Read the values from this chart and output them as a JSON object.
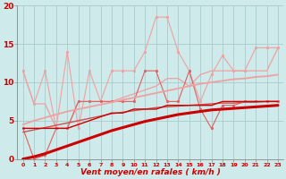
{
  "xlabel": "Vent moyen/en rafales ( km/h )",
  "background_color": "#ceeaea",
  "grid_color": "#aacccc",
  "x_values": [
    0,
    1,
    2,
    3,
    4,
    5,
    6,
    7,
    8,
    9,
    10,
    11,
    12,
    13,
    14,
    15,
    16,
    17,
    18,
    19,
    20,
    21,
    22,
    23
  ],
  "ylim": [
    0,
    20
  ],
  "xlim": [
    -0.5,
    23.5
  ],
  "yticks": [
    0,
    5,
    10,
    15,
    20
  ],
  "series": [
    {
      "name": "light_smooth1",
      "color": "#f0a0a0",
      "linewidth": 0.9,
      "marker": null,
      "y": [
        11.5,
        7.2,
        7.2,
        4.0,
        4.0,
        7.5,
        7.5,
        7.5,
        7.5,
        8.0,
        8.5,
        9.0,
        9.5,
        10.5,
        10.5,
        9.5,
        11.0,
        11.5,
        11.5,
        11.5,
        11.5,
        11.5,
        11.5,
        14.5
      ]
    },
    {
      "name": "light_zigzag_marker",
      "color": "#f0a0a0",
      "linewidth": 0.8,
      "marker": "s",
      "markersize": 2.0,
      "y": [
        11.5,
        7.2,
        11.5,
        4.0,
        14.0,
        4.0,
        11.5,
        7.5,
        11.5,
        11.5,
        11.5,
        14.0,
        18.5,
        18.5,
        14.0,
        11.5,
        7.5,
        11.0,
        13.5,
        11.5,
        11.5,
        14.5,
        14.5,
        14.5
      ]
    },
    {
      "name": "medium_red_zigzag_marker",
      "color": "#e06060",
      "linewidth": 0.8,
      "marker": "s",
      "markersize": 2.0,
      "y": [
        4.0,
        0.0,
        0.5,
        4.0,
        4.0,
        7.5,
        7.5,
        7.5,
        7.5,
        7.5,
        7.5,
        11.5,
        11.5,
        7.5,
        7.5,
        11.5,
        6.5,
        4.0,
        7.0,
        7.0,
        7.5,
        7.5,
        7.5,
        7.5
      ]
    },
    {
      "name": "light_trend_smooth",
      "color": "#f0a0a0",
      "linewidth": 1.3,
      "marker": null,
      "y": [
        4.5,
        5.0,
        5.4,
        5.8,
        6.2,
        6.5,
        6.8,
        7.1,
        7.4,
        7.7,
        8.0,
        8.3,
        8.6,
        8.9,
        9.2,
        9.5,
        9.8,
        10.0,
        10.2,
        10.4,
        10.5,
        10.7,
        10.8,
        11.0
      ]
    },
    {
      "name": "medium_trend_smooth",
      "color": "#d05050",
      "linewidth": 1.0,
      "marker": null,
      "y": [
        3.5,
        3.8,
        4.1,
        4.4,
        4.7,
        5.0,
        5.3,
        5.6,
        5.9,
        6.1,
        6.3,
        6.5,
        6.7,
        6.8,
        6.9,
        7.0,
        7.1,
        7.2,
        7.3,
        7.3,
        7.4,
        7.4,
        7.5,
        7.5
      ]
    },
    {
      "name": "dark_red_trend_thick",
      "color": "#cc0000",
      "linewidth": 2.2,
      "marker": null,
      "y": [
        0.0,
        0.3,
        0.7,
        1.2,
        1.7,
        2.2,
        2.7,
        3.2,
        3.7,
        4.1,
        4.5,
        4.9,
        5.2,
        5.5,
        5.8,
        6.0,
        6.2,
        6.4,
        6.5,
        6.6,
        6.7,
        6.8,
        6.9,
        7.0
      ]
    },
    {
      "name": "dark_red_stepped",
      "color": "#cc0000",
      "linewidth": 1.0,
      "marker": null,
      "y": [
        4.0,
        4.0,
        4.0,
        4.0,
        4.0,
        4.5,
        5.0,
        5.5,
        6.0,
        6.0,
        6.5,
        6.5,
        6.5,
        7.0,
        7.0,
        7.0,
        7.0,
        7.0,
        7.5,
        7.5,
        7.5,
        7.5,
        7.5,
        7.5
      ]
    }
  ]
}
